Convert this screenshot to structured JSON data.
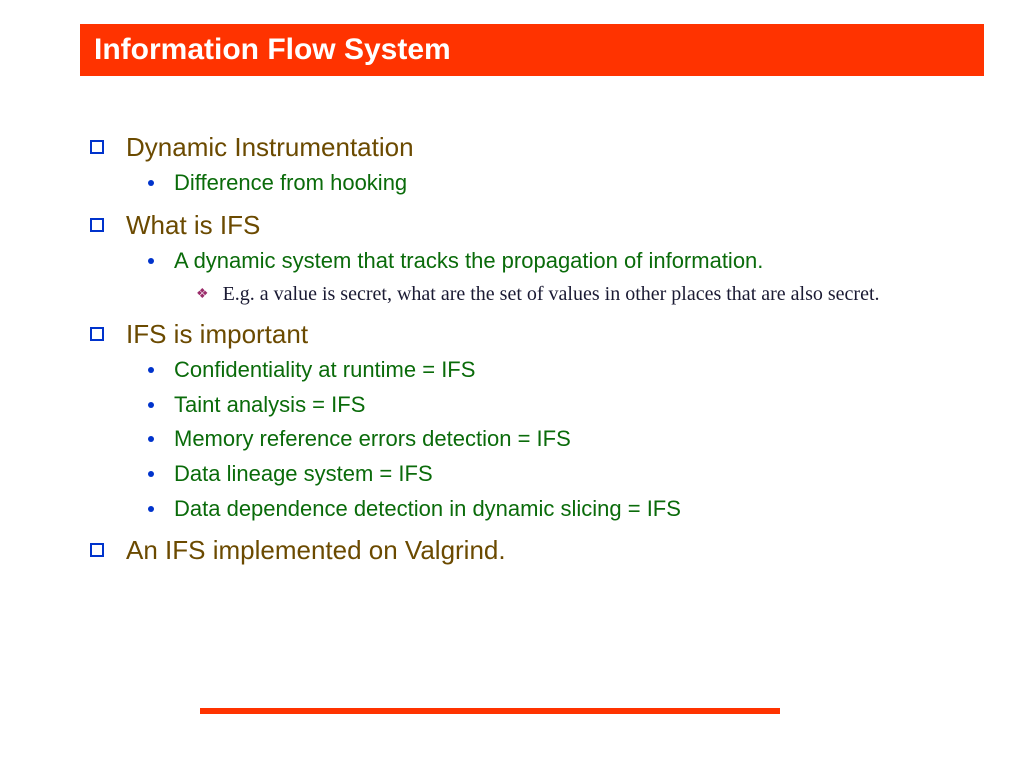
{
  "title": "Information Flow System",
  "colors": {
    "title_bar_bg": "#ff3300",
    "title_text": "#ffffff",
    "l1_bullet_border": "#0033cc",
    "l1_text": "#6b4a00",
    "l2_bullet": "#0033cc",
    "l2_text": "#0a6b0a",
    "l3_bullet": "#9b2d6b",
    "l3_text": "#1a1a33",
    "bottom_rule": "#ff3300",
    "background": "#ffffff"
  },
  "typography": {
    "title_fontsize": 30,
    "l1_fontsize": 26,
    "l2_fontsize": 22,
    "l3_fontsize": 20,
    "l3_font_family": "Georgia, serif",
    "body_font_family": "Arial, sans-serif"
  },
  "items": [
    {
      "level": 1,
      "text": "Dynamic Instrumentation"
    },
    {
      "level": 2,
      "text": "Difference from hooking"
    },
    {
      "level": 1,
      "text": "What is IFS"
    },
    {
      "level": 2,
      "text": "A dynamic system that tracks the propagation of information."
    },
    {
      "level": 3,
      "text": "E.g. a value is secret, what are the set of values in other places that are also secret."
    },
    {
      "level": 1,
      "text": "IFS is important"
    },
    {
      "level": 2,
      "text": "Confidentiality at runtime = IFS"
    },
    {
      "level": 2,
      "text": "Taint analysis = IFS"
    },
    {
      "level": 2,
      "text": "Memory reference errors detection = IFS"
    },
    {
      "level": 2,
      "text": "Data lineage system = IFS"
    },
    {
      "level": 2,
      "text": "Data dependence detection in dynamic slicing = IFS"
    },
    {
      "level": 1,
      "text": "An IFS implemented on Valgrind."
    }
  ],
  "l3_bullet_glyph": "❖"
}
